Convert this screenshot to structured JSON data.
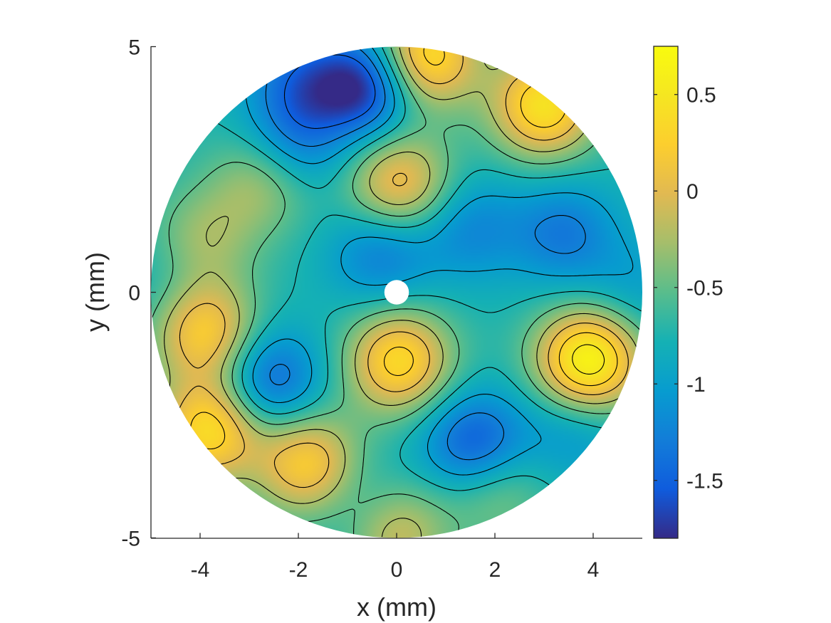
{
  "chart_data": {
    "type": "heatmap",
    "subtype": "filled-contour on circular domain",
    "title": "",
    "xlabel": "x (mm)",
    "ylabel": "y (mm)",
    "xlim": [
      -5,
      5
    ],
    "ylim": [
      -5,
      5
    ],
    "xticks": [
      -4,
      -2,
      0,
      2,
      4
    ],
    "yticks": [
      -5,
      0,
      5
    ],
    "xtick_labels": [
      "-4",
      "-2",
      "0",
      "2",
      "4"
    ],
    "ytick_labels": [
      "-5",
      "0",
      "5"
    ],
    "domain": {
      "shape": "disk",
      "center": [
        0,
        0
      ],
      "radius": 5,
      "hole_center": [
        0,
        0
      ],
      "hole_radius": 0.25
    },
    "colorbar": {
      "colormap": "parula",
      "limits": [
        -1.8,
        0.75
      ],
      "ticks": [
        0.5,
        0,
        -0.5,
        -1,
        -1.5
      ],
      "tick_labels": [
        "0.5",
        "0",
        "-0.5",
        "-1",
        "-1.5"
      ]
    },
    "contour_levels": [
      -1.5,
      -1.25,
      -1.0,
      -0.75,
      -0.5,
      -0.25,
      0.0,
      0.25,
      0.5
    ],
    "extrema": [
      {
        "x": -0.65,
        "y": 4.2,
        "value": -1.8
      },
      {
        "x": 1.6,
        "y": -3.1,
        "value": -1.6
      },
      {
        "x": -2.6,
        "y": -1.8,
        "value": -1.5
      },
      {
        "x": 3.0,
        "y": 3.8,
        "value": 0.45
      },
      {
        "x": 3.9,
        "y": -1.4,
        "value": 0.7
      },
      {
        "x": 3.4,
        "y": 1.2,
        "value": -1.3
      },
      {
        "x": 0.05,
        "y": -1.4,
        "value": 0.35
      },
      {
        "x": 0.05,
        "y": 2.2,
        "value": 0.15
      },
      {
        "x": 0.6,
        "y": 4.8,
        "value": 0.45
      },
      {
        "x": -3.9,
        "y": -0.8,
        "value": 0.25
      },
      {
        "x": -3.8,
        "y": -2.8,
        "value": 0.4
      },
      {
        "x": -1.8,
        "y": -3.5,
        "value": 0.25
      },
      {
        "x": -0.3,
        "y": 0.8,
        "value": -1.3
      },
      {
        "x": -2.1,
        "y": 3.0,
        "value": -1.3
      },
      {
        "x": -2.0,
        "y": 4.3,
        "value": -1.3
      },
      {
        "x": 1.5,
        "y": 1.3,
        "value": -1.2
      },
      {
        "x": 3.6,
        "y": -2.8,
        "value": -1.1
      },
      {
        "x": -0.8,
        "y": -4.2,
        "value": -1.0
      },
      {
        "x": -4.7,
        "y": 0.1,
        "value": -0.9
      },
      {
        "x": 4.8,
        "y": 0.1,
        "value": -1.0
      },
      {
        "x": -2.7,
        "y": 2.3,
        "value": -0.2
      },
      {
        "x": -3.9,
        "y": 1.1,
        "value": -0.3
      },
      {
        "x": 2.0,
        "y": -4.0,
        "value": -0.3
      },
      {
        "x": 0.0,
        "y": -4.9,
        "value": -0.1
      }
    ]
  }
}
